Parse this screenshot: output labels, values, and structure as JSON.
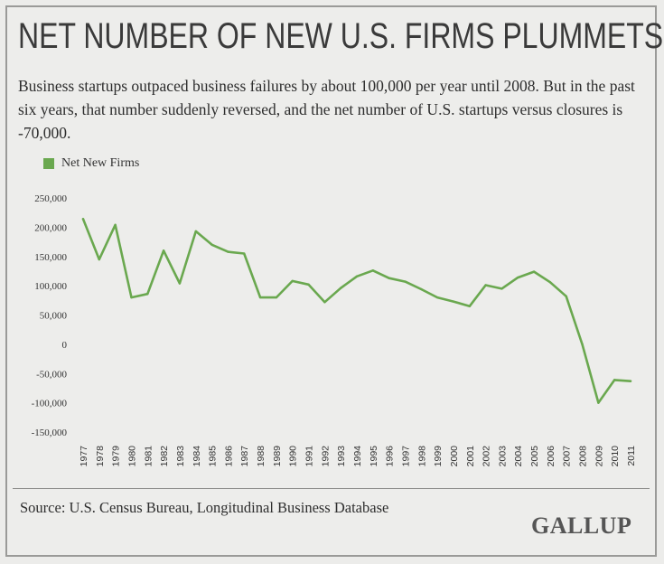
{
  "title": "NET NUMBER OF NEW U.S. FIRMS PLUMMETS",
  "subtitle": "Business startups outpaced business failures by about 100,000 per year until 2008. But in the past six years, that number suddenly reversed, and the net number of U.S. startups versus closures is -70,000.",
  "source": "Source: U.S. Census Bureau, Longitudinal Business Database",
  "logo": "GALLUP",
  "colors": {
    "line": "#6aa84f",
    "background": "#ededeb"
  },
  "chart_data": {
    "type": "line",
    "title": "NET NUMBER OF NEW U.S. FIRMS PLUMMETS",
    "xlabel": "",
    "ylabel": "",
    "ylim": [
      -150000,
      250000
    ],
    "yticks": [
      250000,
      200000,
      150000,
      100000,
      50000,
      0,
      -50000,
      -100000,
      -150000
    ],
    "ytick_labels": [
      "250,000",
      "200,000",
      "150,000",
      "100,000",
      "50,000",
      "0",
      "-50,000",
      "-100,000",
      "-150,000"
    ],
    "legend": "top-left",
    "categories": [
      "1977",
      "1978",
      "1979",
      "1980",
      "1981",
      "1982",
      "1983",
      "1984",
      "1985",
      "1986",
      "1987",
      "1988",
      "1989",
      "1990",
      "1991",
      "1992",
      "1993",
      "1994",
      "1995",
      "1996",
      "1997",
      "1998",
      "1999",
      "2000",
      "2001",
      "2002",
      "2003",
      "2004",
      "2005",
      "2006",
      "2007",
      "2008",
      "2009",
      "2010",
      "2011"
    ],
    "series": [
      {
        "name": "Net New Firms",
        "values": [
          214000,
          145000,
          204000,
          80000,
          86000,
          160000,
          104000,
          193000,
          170000,
          158000,
          155000,
          80000,
          80000,
          108000,
          102000,
          72000,
          96000,
          116000,
          126000,
          113000,
          107000,
          94000,
          80000,
          73000,
          65000,
          101000,
          95000,
          114000,
          124000,
          106000,
          82000,
          0,
          -100000,
          -61000,
          -63000
        ]
      }
    ]
  }
}
